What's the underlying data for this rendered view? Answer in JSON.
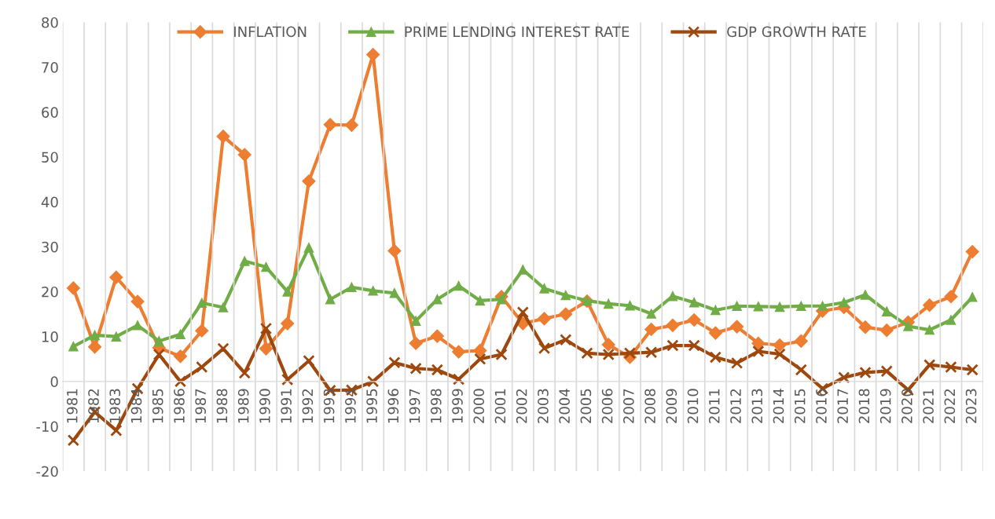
{
  "chart_data": {
    "type": "line",
    "categories": [
      "1981",
      "1982",
      "1983",
      "1984",
      "1985",
      "1986",
      "1987",
      "1988",
      "1989",
      "1990",
      "1991",
      "1992",
      "1993",
      "1994",
      "1995",
      "1996",
      "1997",
      "1998",
      "1999",
      "2000",
      "2001",
      "2002",
      "2003",
      "2004",
      "2005",
      "2006",
      "2007",
      "2008",
      "2009",
      "2010",
      "2011",
      "2012",
      "2013",
      "2014",
      "2015",
      "2016",
      "2017",
      "2018",
      "2019",
      "2020",
      "2021",
      "2022",
      "2023"
    ],
    "series": [
      {
        "name": "INFLATION",
        "color": "#ed7d31",
        "marker": "diamond",
        "values": [
          20.8,
          7.7,
          23.2,
          17.8,
          7.5,
          5.6,
          11.3,
          54.6,
          50.5,
          7.3,
          12.9,
          44.6,
          57.2,
          57.1,
          72.8,
          29.1,
          8.5,
          10.1,
          6.6,
          6.9,
          18.9,
          12.9,
          14.0,
          15.0,
          17.9,
          8.2,
          5.4,
          11.6,
          12.5,
          13.7,
          10.8,
          12.2,
          8.5,
          8.1,
          9.0,
          15.7,
          16.5,
          12.1,
          11.4,
          13.2,
          17.0,
          18.9,
          28.9
        ]
      },
      {
        "name": "PRIME LENDING INTEREST RATE",
        "color": "#70ad47",
        "marker": "triangle",
        "values": [
          7.8,
          10.3,
          10.0,
          12.5,
          9.0,
          10.5,
          17.5,
          16.5,
          26.8,
          25.5,
          20.0,
          29.8,
          18.3,
          21.0,
          20.2,
          19.7,
          13.5,
          18.3,
          21.3,
          18.0,
          18.3,
          24.9,
          20.7,
          19.2,
          18.0,
          17.3,
          16.9,
          15.1,
          19.0,
          17.6,
          15.9,
          16.8,
          16.7,
          16.6,
          16.8,
          16.8,
          17.6,
          19.3,
          15.6,
          12.3,
          11.5,
          13.7,
          18.8
        ]
      },
      {
        "name": "GDP GROWTH RATE",
        "color": "#9e480e",
        "marker": "cross",
        "values": [
          -13.1,
          -6.8,
          -10.9,
          -1.6,
          6.0,
          0.0,
          3.2,
          7.3,
          1.9,
          11.8,
          0.4,
          4.6,
          -2.0,
          -1.9,
          0.0,
          4.2,
          2.9,
          2.6,
          0.5,
          5.0,
          6.0,
          15.4,
          7.4,
          9.3,
          6.3,
          6.0,
          6.3,
          6.5,
          8.0,
          8.0,
          5.4,
          4.1,
          6.7,
          6.1,
          2.6,
          -1.6,
          0.9,
          2.0,
          2.3,
          -1.9,
          3.7,
          3.2,
          2.6
        ]
      }
    ],
    "ylim": [
      -20,
      80
    ],
    "yticks": [
      -20,
      -10,
      0,
      10,
      20,
      30,
      40,
      50,
      60,
      70,
      80
    ],
    "grid": "x",
    "legend": "top",
    "line_style": "solid"
  }
}
